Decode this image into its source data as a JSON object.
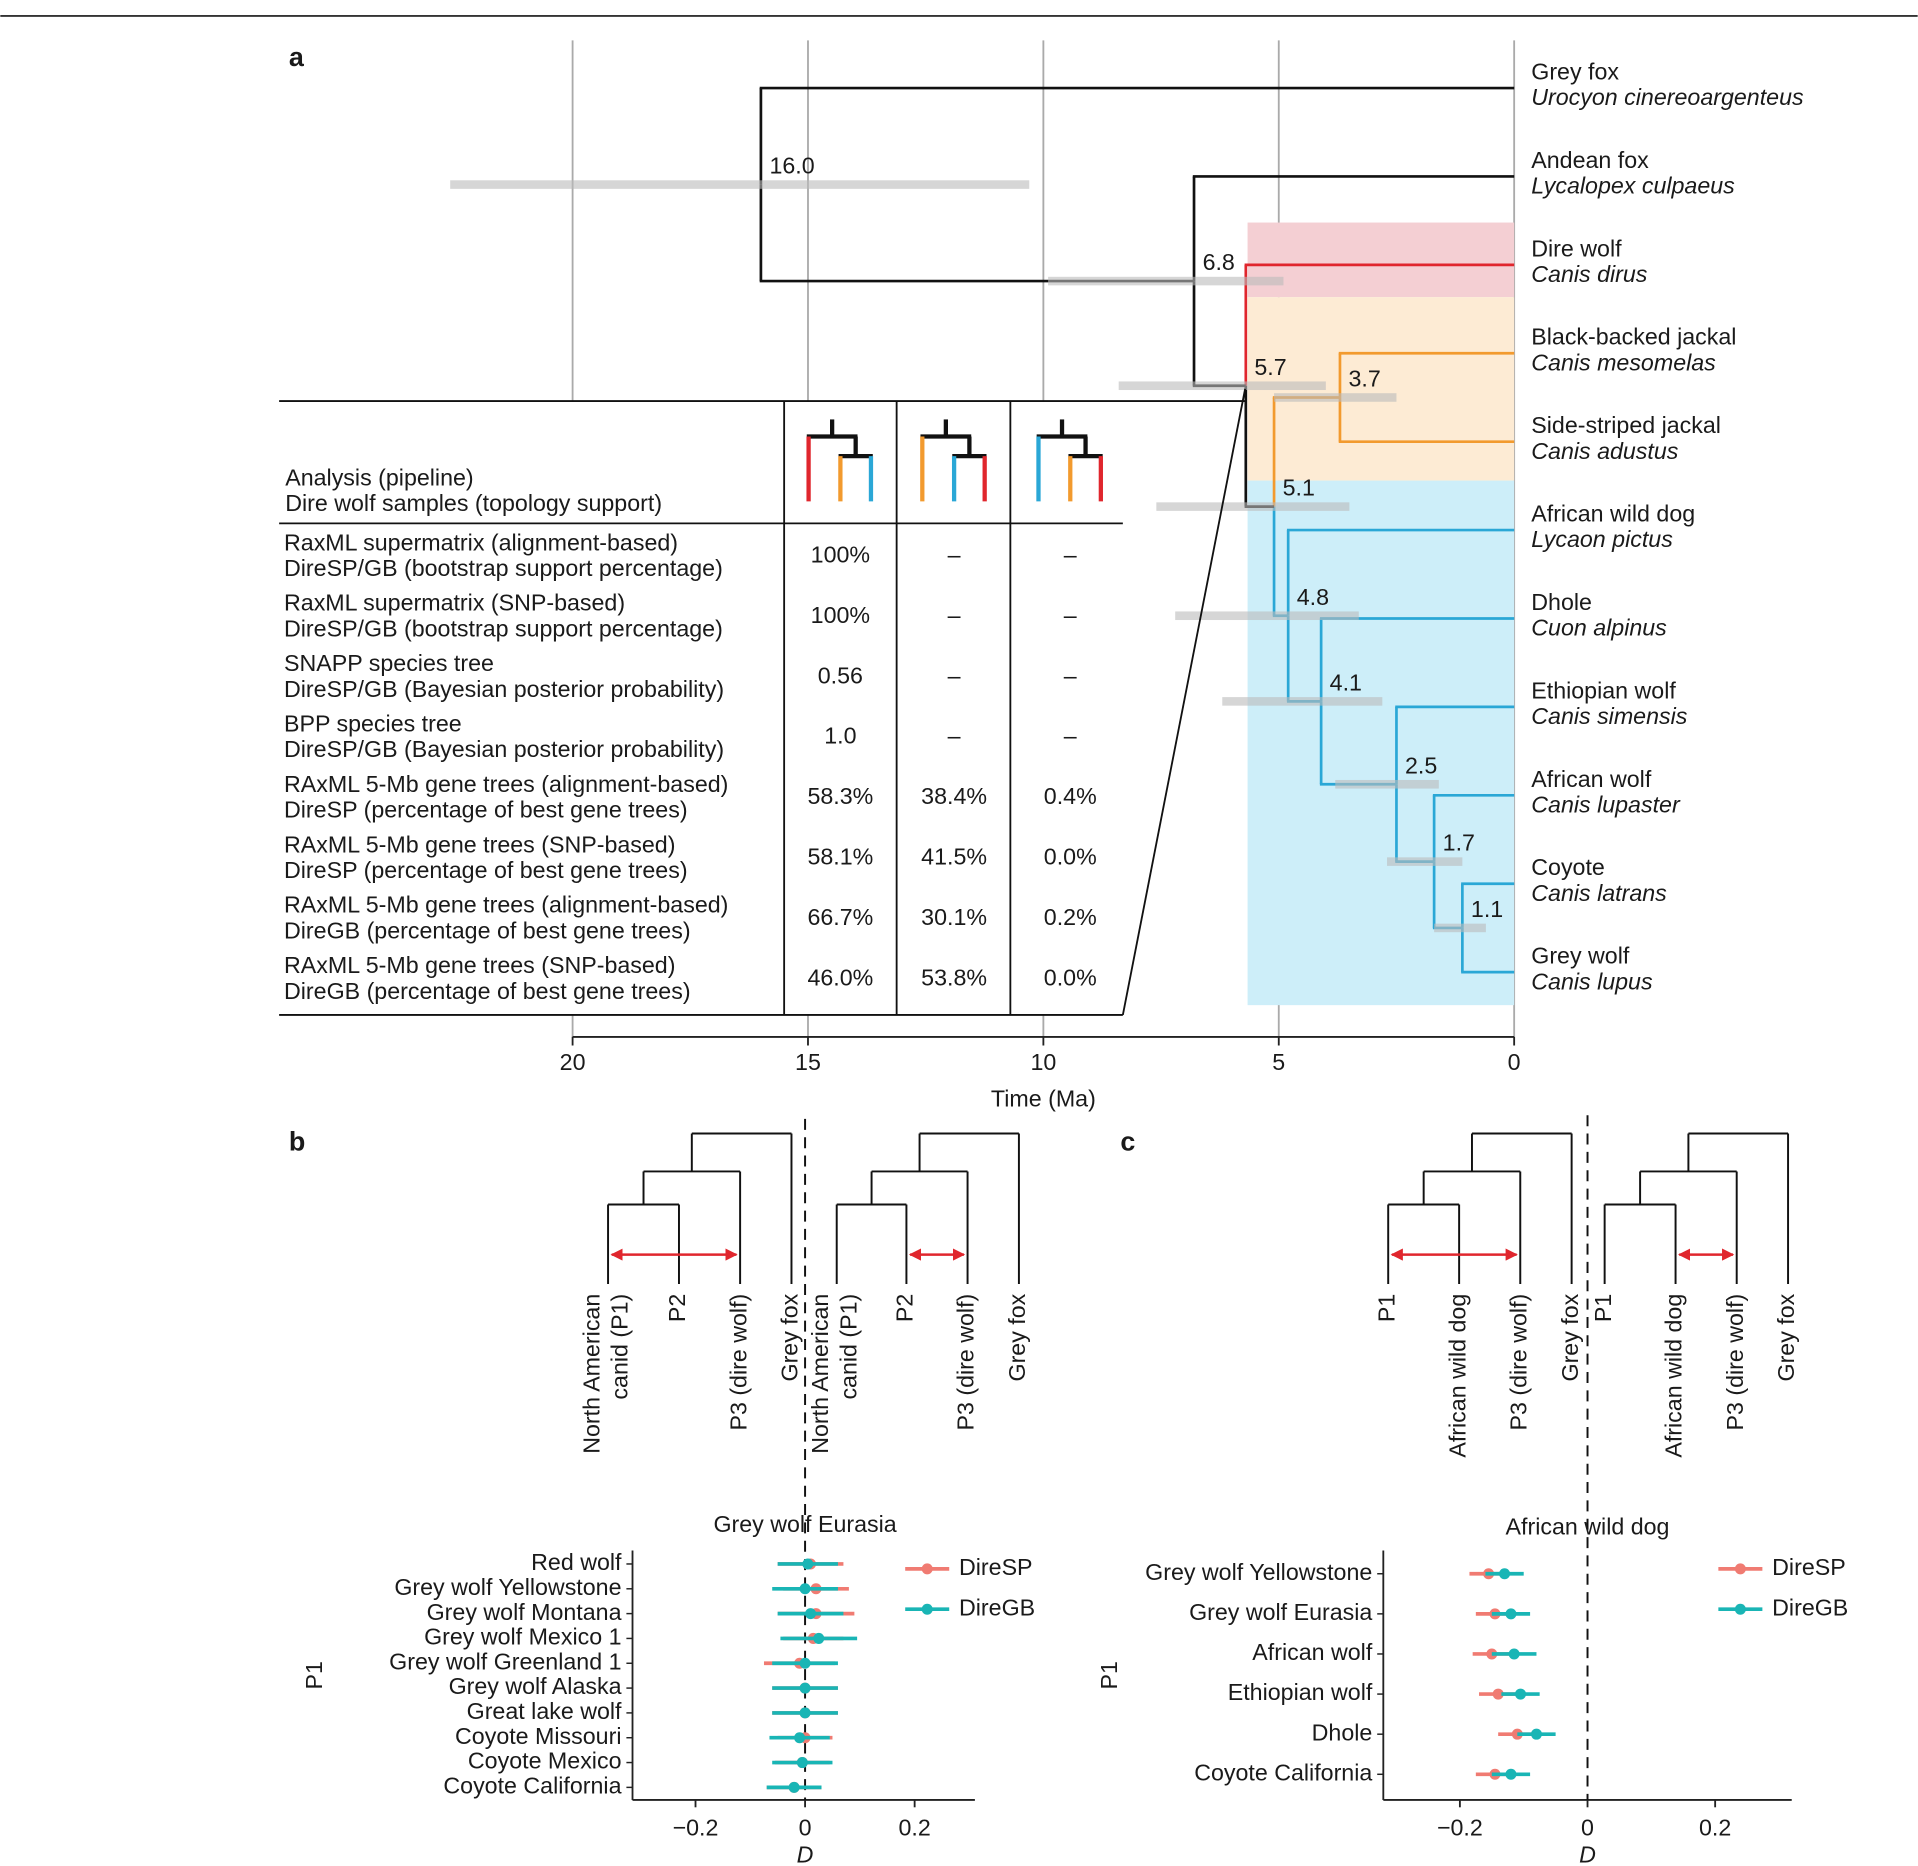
{
  "panel_a": {
    "label": "a",
    "xlabel": "Time (Ma)",
    "xlim": [
      20,
      0
    ],
    "xticks": [
      20,
      15,
      10,
      5,
      0
    ],
    "tips": [
      {
        "common": "Grey fox",
        "latin": "Urocyon cinereoargenteus"
      },
      {
        "common": "Andean fox",
        "latin": "Lycalopex culpaeus"
      },
      {
        "common": "Dire wolf",
        "latin": "Canis dirus"
      },
      {
        "common": "Black-backed jackal",
        "latin": "Canis mesomelas"
      },
      {
        "common": "Side-striped jackal",
        "latin": "Canis adustus"
      },
      {
        "common": "African wild dog",
        "latin": "Lycaon pictus"
      },
      {
        "common": "Dhole",
        "latin": "Cuon alpinus"
      },
      {
        "common": "Ethiopian wolf",
        "latin": "Canis simensis"
      },
      {
        "common": "African wolf",
        "latin": "Canis lupaster"
      },
      {
        "common": "Coyote",
        "latin": "Canis latrans"
      },
      {
        "common": "Grey wolf",
        "latin": "Canis lupus"
      }
    ],
    "tree": {
      "age": 16,
      "label": "16.0",
      "hpd": [
        22.6,
        10.3
      ],
      "children": [
        {
          "tip": 0
        },
        {
          "age": 6.8,
          "hpd": [
            9.9,
            4.9
          ],
          "children": [
            {
              "tip": 1
            },
            {
              "age": 5.7,
              "hpd": [
                8.4,
                4.0
              ],
              "children": [
                {
                  "tip": 2,
                  "color": "#e0262d"
                },
                {
                  "age": 5.1,
                  "hpd": [
                    7.6,
                    3.5
                  ],
                  "children": [
                    {
                      "age": 3.7,
                      "hpd": [
                        5.1,
                        2.5
                      ],
                      "color": "#f29a2e",
                      "children": [
                        {
                          "tip": 3
                        },
                        {
                          "tip": 4
                        }
                      ]
                    },
                    {
                      "age": 4.8,
                      "hpd": [
                        7.2,
                        3.3
                      ],
                      "color": "#2aa7d6",
                      "children": [
                        {
                          "tip": 5
                        },
                        {
                          "age": 4.1,
                          "hpd": [
                            6.2,
                            2.8
                          ],
                          "children": [
                            {
                              "tip": 6
                            },
                            {
                              "age": 2.5,
                              "hpd": [
                                3.8,
                                1.6
                              ],
                              "children": [
                                {
                                  "tip": 7
                                },
                                {
                                  "age": 1.7,
                                  "hpd": [
                                    2.7,
                                    1.1
                                  ],
                                  "children": [
                                    {
                                      "tip": 8
                                    },
                                    {
                                      "age": 1.1,
                                      "hpd": [
                                        1.7,
                                        0.6
                                      ],
                                      "children": [
                                        {
                                          "tip": 9
                                        },
                                        {
                                          "tip": 10
                                        }
                                      ]
                                    }
                                  ]
                                }
                              ]
                            }
                          ]
                        }
                      ]
                    }
                  ]
                }
              ]
            }
          ]
        }
      ]
    },
    "table": {
      "header": [
        "Analysis (pipeline)",
        "Dire wolf samples (topology support)"
      ],
      "rows": [
        {
          "analysis": [
            "RaxML supermatrix (alignment-based)",
            "DireSP/GB (bootstrap support percentage)"
          ],
          "values": [
            "100%",
            "–",
            "–"
          ]
        },
        {
          "analysis": [
            "RaxML supermatrix (SNP-based)",
            "DireSP/GB (bootstrap support percentage)"
          ],
          "values": [
            "100%",
            "–",
            "–"
          ]
        },
        {
          "analysis": [
            "SNAPP species tree",
            "DireSP/GB (Bayesian posterior probability)"
          ],
          "values": [
            "0.56",
            "–",
            "–"
          ]
        },
        {
          "analysis": [
            "BPP species tree",
            "DireSP/GB (Bayesian posterior probability)"
          ],
          "values": [
            "1.0",
            "–",
            "–"
          ]
        },
        {
          "analysis": [
            "RAxML 5-Mb gene trees (alignment-based)",
            "DireSP (percentage of best gene trees)"
          ],
          "values": [
            "58.3%",
            "38.4%",
            "0.4%"
          ]
        },
        {
          "analysis": [
            "RAxML 5-Mb gene trees (SNP-based)",
            "DireSP (percentage of best gene trees)"
          ],
          "values": [
            "58.1%",
            "41.5%",
            "0.0%"
          ]
        },
        {
          "analysis": [
            "RAxML 5-Mb gene trees (alignment-based)",
            "DireGB (percentage of best gene trees)"
          ],
          "values": [
            "66.7%",
            "30.1%",
            "0.2%"
          ]
        },
        {
          "analysis": [
            "RAxML 5-Mb gene trees (SNP-based)",
            "DireGB (percentage of best gene trees)"
          ],
          "values": [
            "46.0%",
            "53.8%",
            "0.0%"
          ]
        }
      ]
    }
  },
  "panel_b": {
    "label": "b",
    "trees": [
      {
        "tips": [
          [
            "North American",
            "canid (P1)"
          ],
          [
            "P2"
          ],
          [
            "P3 (dire wolf)"
          ],
          [
            "Grey fox"
          ]
        ]
      },
      {
        "tips": [
          [
            "North American",
            "canid (P1)"
          ],
          [
            "P2"
          ],
          [
            "P3 (dire wolf)"
          ],
          [
            "Grey fox"
          ]
        ]
      }
    ],
    "title": "Grey wolf Eurasia",
    "ylabel": "P1",
    "xlabel": "D",
    "xlim": [
      -0.315,
      0.31
    ],
    "xticks": [
      {
        "value": -0.2,
        "label": "−0.2"
      },
      0,
      0.2
    ],
    "categories": [
      "Red wolf",
      "Grey wolf Yellowstone",
      "Grey wolf Montana",
      "Grey wolf Mexico 1",
      "Grey wolf Greenland 1",
      "Grey wolf Alaska",
      "Great lake wolf",
      "Coyote Missouri",
      "Coyote Mexico",
      "Coyote California"
    ],
    "series": [
      {
        "name": "DireSP",
        "color": "#f07b72",
        "values": [
          0.01,
          0.02,
          0.02,
          0.015,
          -0.01,
          0.0,
          0.0,
          0.0,
          -0.005,
          -0.02
        ],
        "errors": [
          0.06,
          0.06,
          0.07,
          0.055,
          0.065,
          0.06,
          0.06,
          0.05,
          0.05,
          0.05
        ]
      },
      {
        "name": "DireGB",
        "color": "#19b5b5",
        "values": [
          0.005,
          0.0,
          0.01,
          0.025,
          0.0,
          0.0,
          0.0,
          -0.01,
          -0.005,
          -0.02
        ],
        "errors": [
          0.055,
          0.06,
          0.06,
          0.07,
          0.06,
          0.06,
          0.06,
          0.055,
          0.055,
          0.05
        ]
      }
    ]
  },
  "panel_c": {
    "label": "c",
    "trees": [
      {
        "tips": [
          [
            "P1"
          ],
          [
            "African wild dog"
          ],
          [
            "P3 (dire wolf)"
          ],
          [
            "Grey fox"
          ]
        ]
      },
      {
        "tips": [
          [
            "P1"
          ],
          [
            "African wild dog"
          ],
          [
            "P3 (dire wolf)"
          ],
          [
            "Grey fox"
          ]
        ]
      }
    ],
    "title": "African wild dog",
    "ylabel": "P1",
    "xlabel": "D",
    "xlim": [
      -0.32,
      0.32
    ],
    "xticks": [
      {
        "value": -0.2,
        "label": "−0.2"
      },
      0,
      0.2
    ],
    "categories": [
      "Grey wolf Yellowstone",
      "Grey wolf Eurasia",
      "African wolf",
      "Ethiopian wolf",
      "Dhole",
      "Coyote California"
    ],
    "series": [
      {
        "name": "DireSP",
        "color": "#f07b72",
        "values": [
          -0.155,
          -0.145,
          -0.15,
          -0.14,
          -0.11,
          -0.145
        ],
        "errors": [
          0.03,
          0.03,
          0.03,
          0.03,
          0.03,
          0.03
        ]
      },
      {
        "name": "DireGB",
        "color": "#19b5b5",
        "values": [
          -0.13,
          -0.12,
          -0.115,
          -0.105,
          -0.08,
          -0.12
        ],
        "errors": [
          0.03,
          0.03,
          0.035,
          0.03,
          0.03,
          0.03
        ]
      }
    ]
  }
}
